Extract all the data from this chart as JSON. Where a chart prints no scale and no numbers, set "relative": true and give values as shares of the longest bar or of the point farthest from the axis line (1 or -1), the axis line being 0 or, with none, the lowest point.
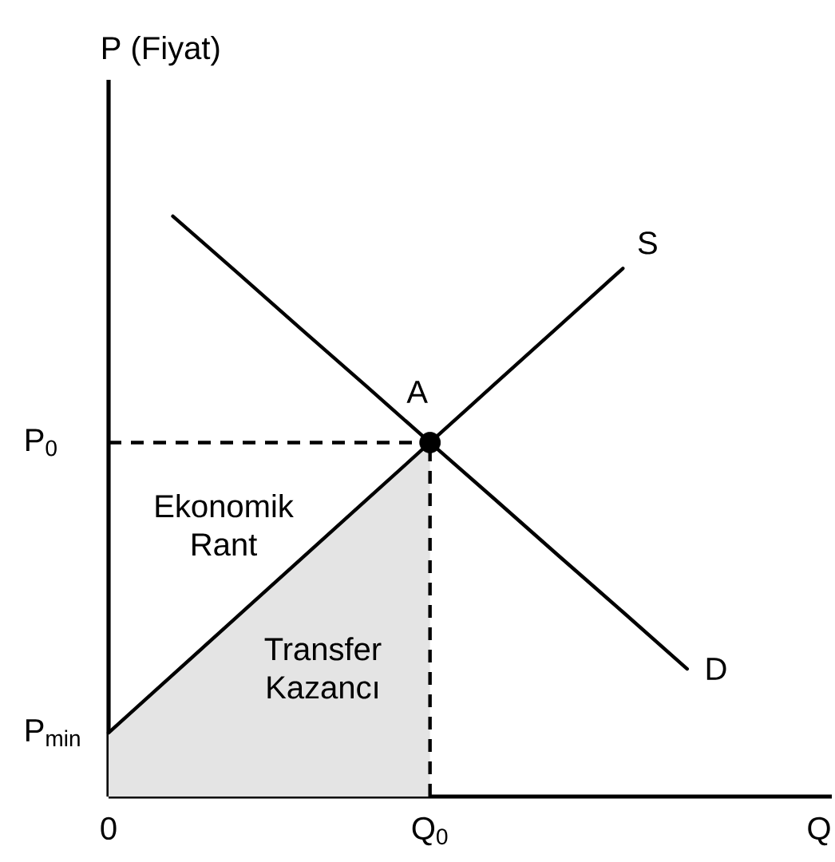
{
  "chart_data": {
    "type": "line",
    "ylabel": "P (Fiyat)",
    "xlabel": "Q",
    "relative": true,
    "line_style": "solid",
    "categories": [
      "0",
      null,
      null,
      null,
      null,
      "Q$_{0}$",
      null,
      null,
      null,
      null
    ],
    "series": [
      {
        "name": "Transfer Kazancı",
        "type": "area",
        "color": "#e4e4e4",
        "values": [
          0.11,
          0.21,
          0.31,
          0.41,
          0.51,
          0.61,
          null,
          null,
          null,
          null
        ]
      },
      {
        "name": "S",
        "color": "#000000",
        "values": [
          0.11,
          0.21,
          0.31,
          0.41,
          0.51,
          0.61,
          0.71,
          0.81,
          0.91,
          null
        ]
      },
      {
        "name": "D",
        "color": "#000000",
        "values": [
          null,
          1,
          0.903,
          0.805,
          0.708,
          0.61,
          0.513,
          0.415,
          0.318,
          0.22
        ]
      },
      {
        "type": "lollipop",
        "color": "#000000",
        "marker": "circle",
        "line_style": "dashed",
        "values": [
          null,
          null,
          null,
          null,
          null,
          0.61,
          null,
          null,
          null,
          null
        ]
      }
    ],
    "ref_lines": [
      {
        "axis": "y",
        "value": 0.61,
        "label": "P$_{0}$",
        "line_style": "dashed",
        "color": "#000000"
      }
    ],
    "annotations": [
      {
        "text": "A",
        "x": "Q$_{0}$",
        "y": 0.61
      },
      {
        "text": "P$_{min}$",
        "x": "0",
        "y": 0.11
      },
      "Ekonomik Rant"
    ]
  }
}
